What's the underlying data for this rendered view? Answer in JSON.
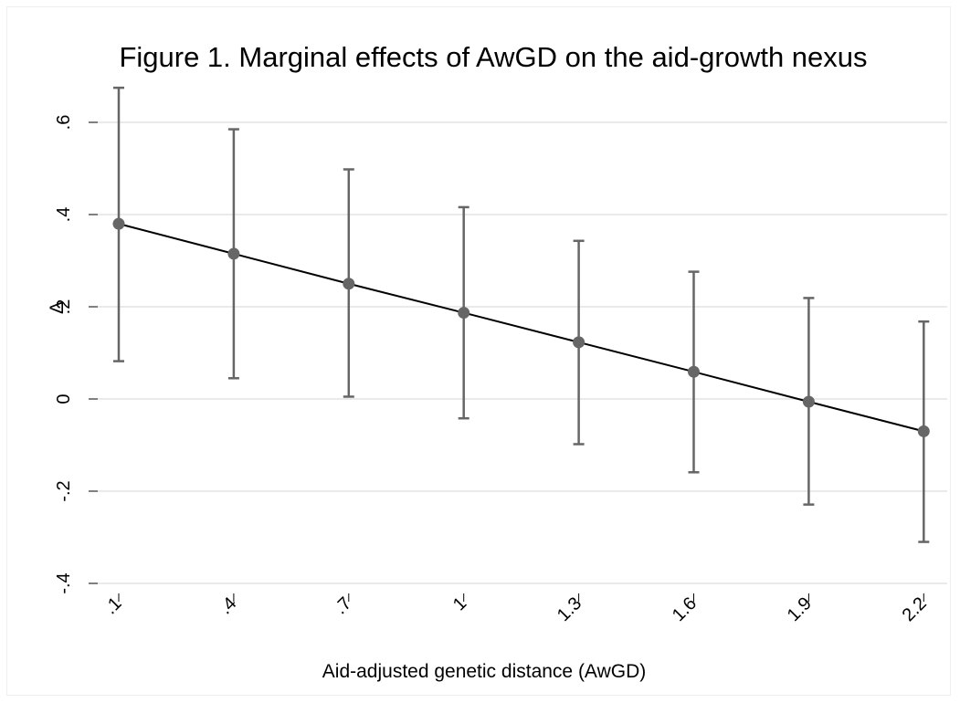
{
  "chart_data": {
    "type": "line",
    "title": "Figure 1. Marginal effects of AwGD on the aid-growth nexus",
    "xlabel": "Aid-adjusted genetic distance (AwGD)",
    "ylabel": "Δ",
    "x": [
      0.1,
      0.4,
      0.7,
      1.0,
      1.3,
      1.6,
      1.9,
      2.2
    ],
    "x_tick_labels": [
      ".1",
      ".4",
      ".7",
      "1",
      "1.3",
      "1.6",
      "1.9",
      "2.2"
    ],
    "y_ticks": [
      -0.4,
      -0.2,
      0,
      0.2,
      0.4,
      0.6
    ],
    "y_tick_labels": [
      "-.4",
      "-.2",
      "0",
      ".2",
      ".4",
      ".6"
    ],
    "ylim": [
      -0.4,
      0.6
    ],
    "grid": "horizontal",
    "series": [
      {
        "values": [
          0.38,
          0.315,
          0.25,
          0.187,
          0.123,
          0.059,
          -0.006,
          -0.07
        ],
        "ci_upper": [
          0.675,
          0.585,
          0.498,
          0.416,
          0.343,
          0.276,
          0.219,
          0.168
        ],
        "ci_lower": [
          0.082,
          0.045,
          0.005,
          -0.042,
          -0.098,
          -0.159,
          -0.229,
          -0.31
        ]
      }
    ],
    "colors": {
      "line": "#000000",
      "marker": "#666666",
      "error_bar": "#666666",
      "grid": "#eaeaea"
    }
  }
}
